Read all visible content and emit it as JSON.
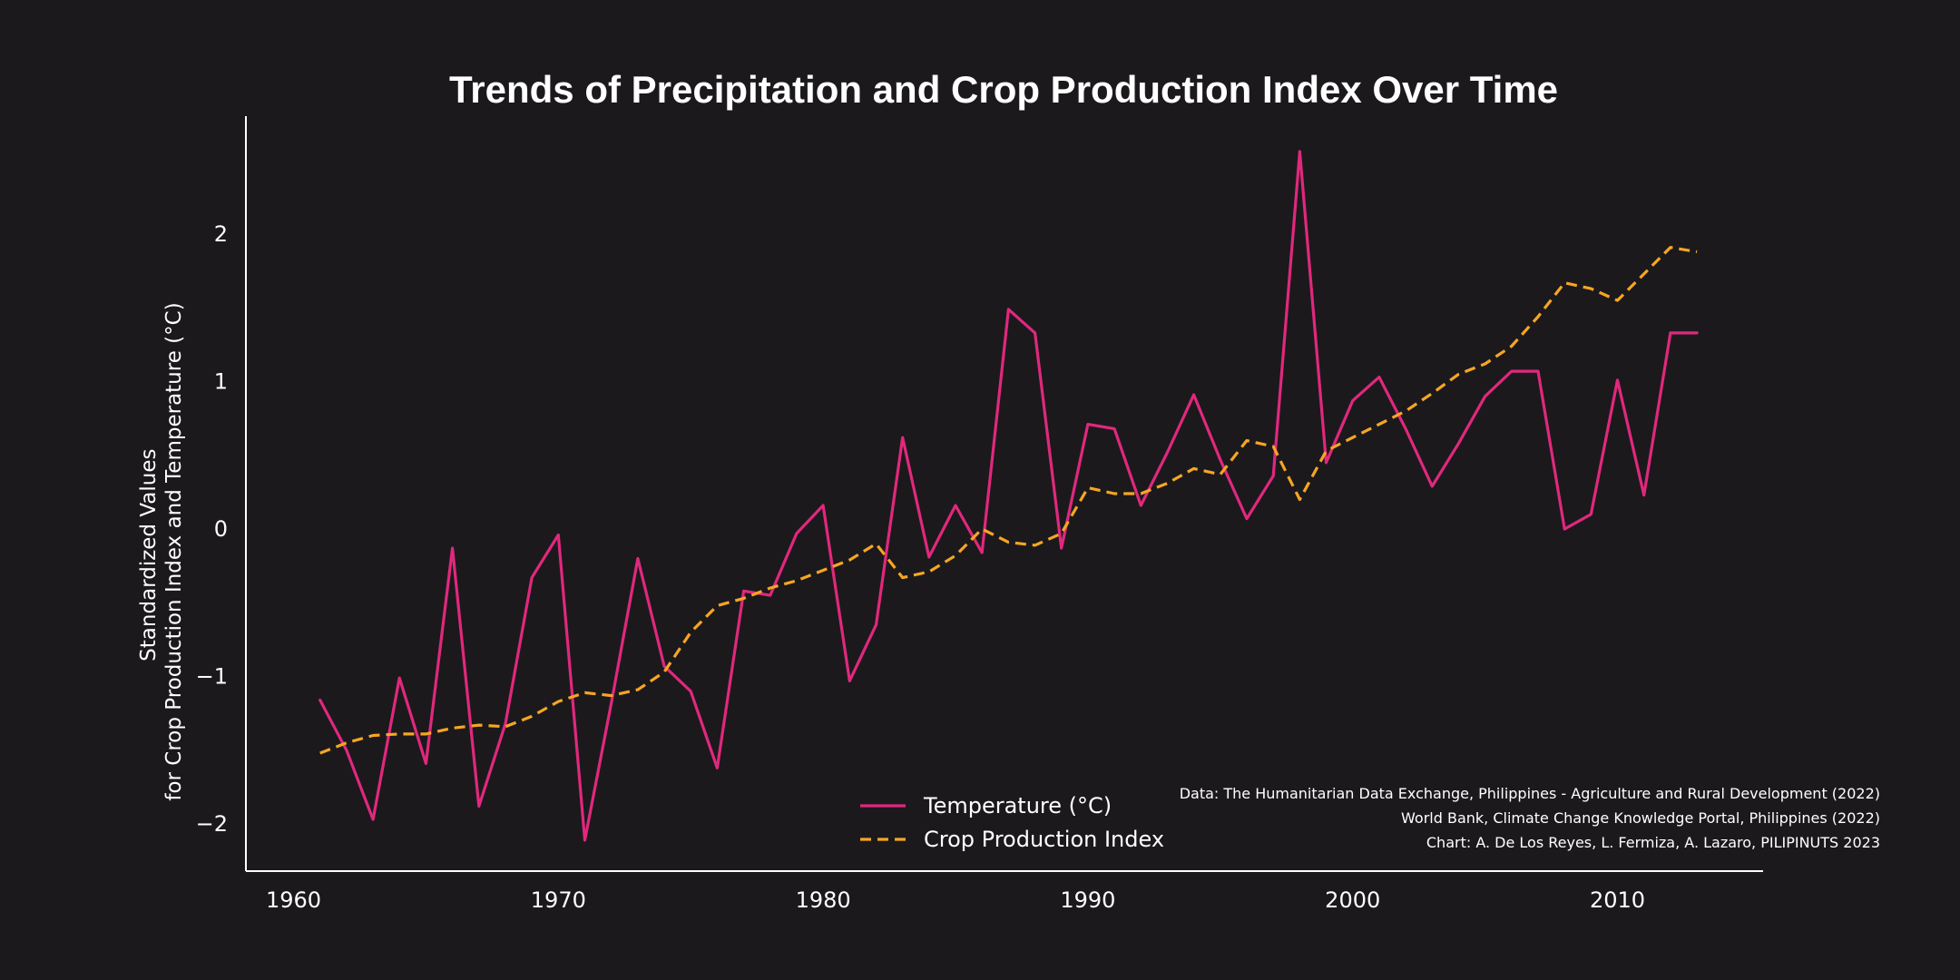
{
  "chart_data": {
    "type": "line",
    "title": "Trends of Precipitation and Crop Production Index Over Time",
    "ylabel_line1": "Standardized Values",
    "ylabel_line2": "for Crop Production Index and Temperature (°C)",
    "xlim": [
      1958.2,
      2015.5
    ],
    "ylim": [
      -2.32,
      2.8
    ],
    "x_ticks": [
      1960,
      1970,
      1980,
      1990,
      2000,
      2010
    ],
    "y_ticks": [
      -2,
      -1,
      0,
      1,
      2
    ],
    "x_tick_labels": [
      "1960",
      "1970",
      "1980",
      "1990",
      "2000",
      "2010"
    ],
    "y_tick_labels": [
      "−2",
      "−1",
      "0",
      "1",
      "2"
    ],
    "grid": false,
    "legend_position": "bottom-center",
    "x": [
      1961,
      1962,
      1963,
      1964,
      1965,
      1966,
      1967,
      1968,
      1969,
      1970,
      1971,
      1972,
      1973,
      1974,
      1975,
      1976,
      1977,
      1978,
      1979,
      1980,
      1981,
      1982,
      1983,
      1984,
      1985,
      1986,
      1987,
      1988,
      1989,
      1990,
      1991,
      1992,
      1993,
      1994,
      1995,
      1996,
      1997,
      1998,
      1999,
      2000,
      2001,
      2002,
      2003,
      2004,
      2005,
      2006,
      2007,
      2008,
      2009,
      2010,
      2011,
      2012,
      2013
    ],
    "series": [
      {
        "name": "Temperature (°C)",
        "color": "#e0287d",
        "dash": "solid",
        "values": [
          -1.16,
          -1.5,
          -1.97,
          -1.01,
          -1.59,
          -0.13,
          -1.88,
          -1.32,
          -0.33,
          -0.04,
          -2.11,
          -1.18,
          -0.2,
          -0.93,
          -1.1,
          -1.62,
          -0.42,
          -0.45,
          -0.03,
          0.16,
          -1.03,
          -0.65,
          0.62,
          -0.19,
          0.16,
          -0.16,
          1.49,
          1.33,
          -0.13,
          0.71,
          0.68,
          0.16,
          0.52,
          0.91,
          0.47,
          0.07,
          0.36,
          2.56,
          0.45,
          0.87,
          1.03,
          0.68,
          0.29,
          0.58,
          0.9,
          1.07,
          1.07,
          0.0,
          0.1,
          1.01,
          0.23,
          1.33,
          1.33
        ]
      },
      {
        "name": "Crop Production Index",
        "color": "#f5a623",
        "dash": "dashed",
        "values": [
          -1.52,
          -1.45,
          -1.4,
          -1.39,
          -1.39,
          -1.35,
          -1.33,
          -1.34,
          -1.27,
          -1.17,
          -1.11,
          -1.13,
          -1.09,
          -0.97,
          -0.7,
          -0.52,
          -0.47,
          -0.4,
          -0.35,
          -0.28,
          -0.21,
          -0.1,
          -0.33,
          -0.29,
          -0.18,
          0.0,
          -0.09,
          -0.11,
          -0.03,
          0.28,
          0.24,
          0.24,
          0.31,
          0.41,
          0.37,
          0.6,
          0.56,
          0.2,
          0.53,
          0.62,
          0.71,
          0.8,
          0.92,
          1.05,
          1.12,
          1.24,
          1.44,
          1.67,
          1.63,
          1.55,
          1.73,
          1.91,
          1.88
        ]
      }
    ]
  },
  "source_lines": [
    "Data: The Humanitarian Data Exchange, Philippines - Agriculture and Rural Development (2022)",
    "World Bank, Climate Change Knowledge Portal, Philippines (2022)",
    "Chart: A. De Los Reyes, L. Fermiza, A. Lazaro, PILIPINUTS 2023"
  ]
}
